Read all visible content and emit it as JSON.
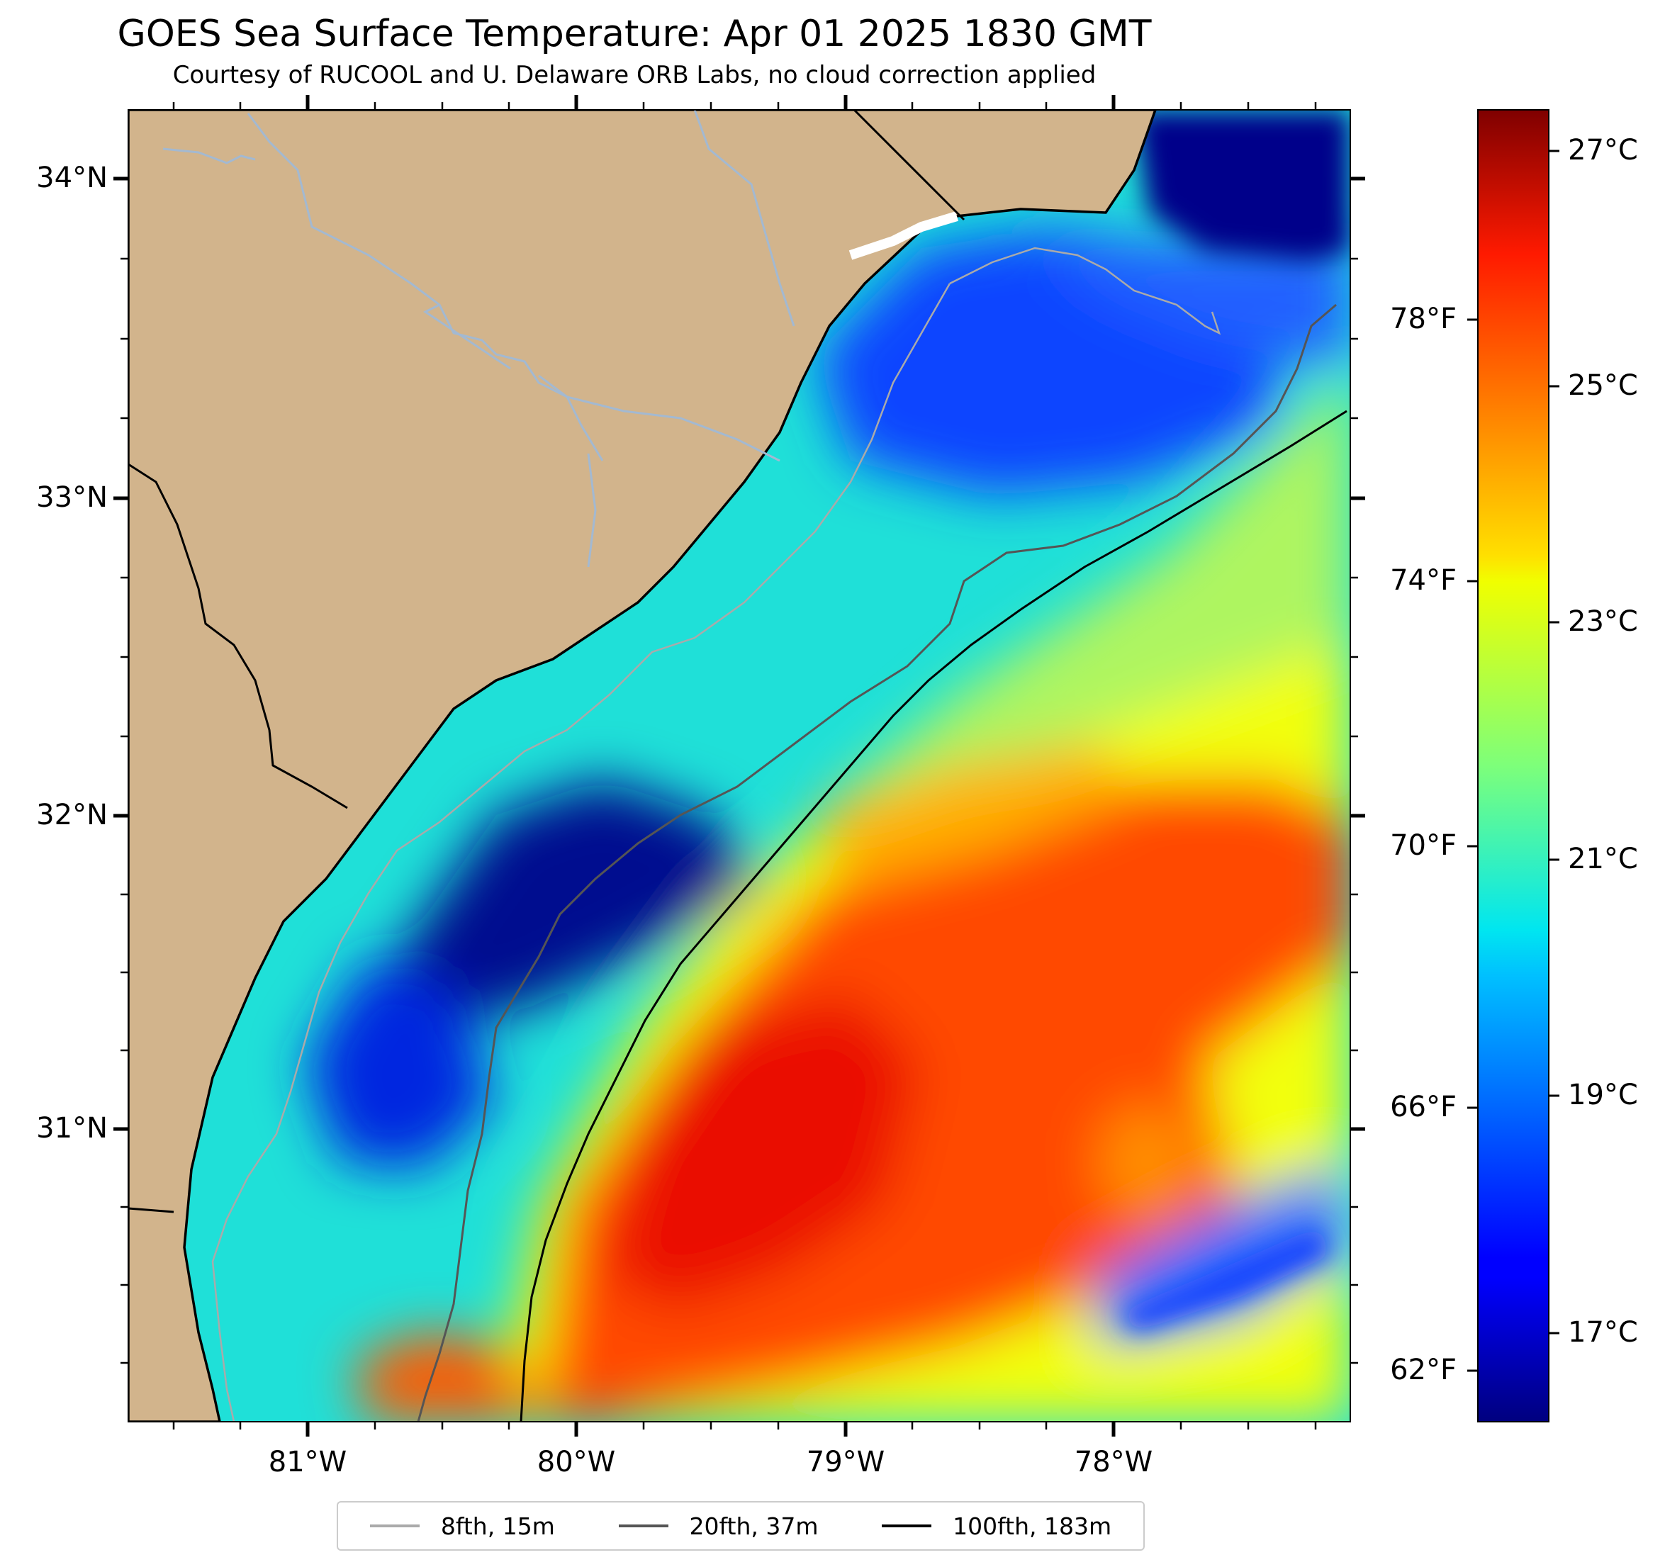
{
  "title": "GOES Sea Surface Temperature: Apr 01 2025 1830 GMT",
  "subtitle": "Courtesy of RUCOOL and U. Delaware ORB Labs, no cloud correction applied",
  "map": {
    "lat_ticks": [
      "34°N",
      "33°N",
      "32°N",
      "31°N"
    ],
    "lon_ticks": [
      "81°W",
      "80°W",
      "79°W",
      "78°W"
    ],
    "land_color": "#d2b48c",
    "river_color": "#a3b9d1"
  },
  "colorbar": {
    "celsius_ticks": [
      "27°C",
      "25°C",
      "23°C",
      "21°C",
      "19°C",
      "17°C"
    ],
    "fahrenheit_ticks": [
      "78°F",
      "74°F",
      "70°F",
      "66°F",
      "62°F"
    ],
    "colormap": "jet"
  },
  "legend": {
    "items": [
      {
        "label": "8fth, 15m",
        "color": "#aaaaaa"
      },
      {
        "label": "20fth, 37m",
        "color": "#555555"
      },
      {
        "label": "100fth, 183m",
        "color": "#000000"
      }
    ]
  }
}
